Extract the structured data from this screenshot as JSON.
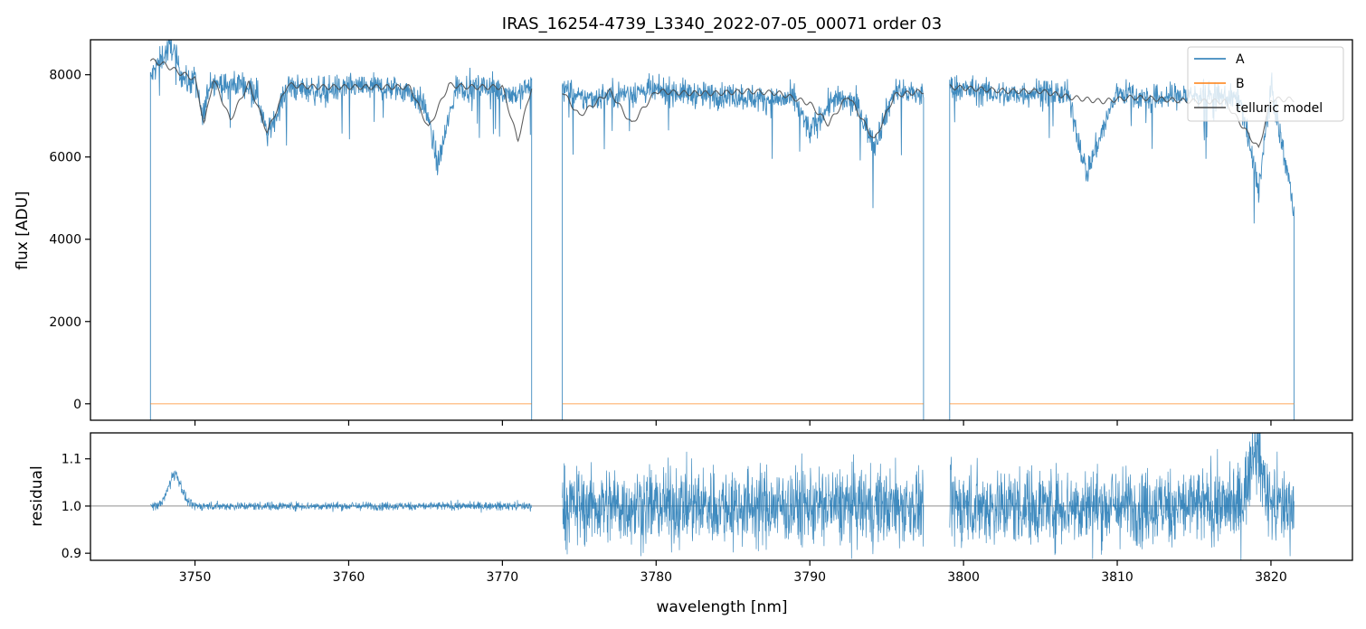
{
  "chart_data": [
    {
      "type": "line",
      "title": "IRAS_16254-4739_L3340_2022-07-05_00071  order 03",
      "xlabel": "",
      "ylabel": "flux [ADU]",
      "xlim": [
        3743.2,
        3825.3
      ],
      "ylim": [
        -400,
        8850
      ],
      "yticks": [
        0,
        2000,
        4000,
        6000,
        8000
      ],
      "xticks": [
        3750,
        3760,
        3770,
        3780,
        3790,
        3800,
        3810,
        3820
      ],
      "xtick_labels_shown": false,
      "grid": false,
      "legend": {
        "placement": "top-right",
        "entries": [
          "A",
          "B",
          "telluric model"
        ]
      },
      "segments": [
        [
          3747.1,
          3771.9
        ],
        [
          3773.9,
          3797.4
        ],
        [
          3799.1,
          3821.5
        ]
      ],
      "series": [
        {
          "name": "A",
          "color": "#1f77b4",
          "description_points": {
            "x": [
              3747.1,
              3747.5,
              3748.0,
              3748.5,
              3749.0,
              3749.5,
              3750.0,
              3750.5,
              3751.0,
              3752.0,
              3753.0,
              3754.0,
              3754.7,
              3756.0,
              3758.0,
              3760.0,
              3762.0,
              3764.0,
              3765.0,
              3765.8,
              3767.0,
              3769.0,
              3771.0,
              3771.9,
              3773.9,
              3775.0,
              3777.0,
              3779.0,
              3781.0,
              3783.0,
              3785.0,
              3787.0,
              3789.0,
              3790.0,
              3791.5,
              3793.0,
              3794.2,
              3795.5,
              3797.4,
              3799.1,
              3801.0,
              3803.0,
              3805.0,
              3806.8,
              3808.0,
              3810.0,
              3812.0,
              3814.0,
              3816.0,
              3818.0,
              3819.2,
              3820.0,
              3821.5
            ],
            "y": [
              7900,
              8200,
              8500,
              8700,
              8100,
              7800,
              7900,
              6900,
              7900,
              7700,
              7800,
              7600,
              6500,
              7700,
              7600,
              7700,
              7700,
              7600,
              7200,
              5800,
              7700,
              7700,
              7500,
              7800,
              7700,
              7400,
              7500,
              7600,
              7600,
              7500,
              7500,
              7400,
              7400,
              6600,
              7400,
              7300,
              6300,
              7600,
              7500,
              7700,
              7600,
              7500,
              7600,
              7500,
              5600,
              7600,
              7400,
              7500,
              7500,
              7400,
              5200,
              7700,
              4800
            ]
          }
        },
        {
          "name": "B",
          "color": "#ff7f0e",
          "description_points": {
            "x": [
              3747.1,
              3821.5
            ],
            "y": [
              0,
              0
            ]
          }
        },
        {
          "name": "telluric model",
          "color": "#444444",
          "description_points": {
            "x": [
              3747.1,
              3748.0,
              3749.0,
              3750.0,
              3750.6,
              3751.2,
              3752.3,
              3753.5,
              3754.7,
              3756.0,
              3758.0,
              3760.0,
              3762.0,
              3764.0,
              3765.2,
              3766.5,
              3768.0,
              3770.0,
              3771.0,
              3771.9,
              3773.9,
              3775.0,
              3777.0,
              3778.4,
              3780.0,
              3782.0,
              3784.0,
              3786.0,
              3788.0,
              3790.0,
              3791.2,
              3792.5,
              3794.2,
              3795.5,
              3797.4,
              3799.1,
              3801.0,
              3803.0,
              3805.0,
              3807.0,
              3809.0,
              3811.0,
              3813.0,
              3815.0,
              3817.0,
              3819.2,
              3820.0,
              3821.5
            ],
            "y": [
              8350,
              8250,
              8050,
              7900,
              6800,
              7900,
              6900,
              7800,
              6600,
              7750,
              7700,
              7700,
              7700,
              7700,
              6700,
              7750,
              7700,
              7700,
              6400,
              7700,
              7600,
              7000,
              7600,
              6800,
              7600,
              7550,
              7550,
              7600,
              7550,
              7300,
              6800,
              7500,
              6400,
              7500,
              7600,
              7700,
              7650,
              7600,
              7600,
              7450,
              7350,
              7450,
              7400,
              7350,
              7350,
              6200,
              7400,
              7400
            ]
          }
        }
      ]
    },
    {
      "type": "line",
      "title": "",
      "xlabel": "wavelength [nm]",
      "ylabel": "residual",
      "xlim": [
        3743.2,
        3825.3
      ],
      "ylim": [
        0.885,
        1.155
      ],
      "yticks": [
        0.9,
        1.0,
        1.1
      ],
      "ytick_labels": [
        "0.9",
        "1.0",
        "1.1"
      ],
      "xticks": [
        3750,
        3760,
        3770,
        3780,
        3790,
        3800,
        3810,
        3820
      ],
      "xtick_labels": [
        "3750",
        "3760",
        "3770",
        "3780",
        "3790",
        "3800",
        "3810",
        "3820"
      ],
      "reference_line": 1.0,
      "grid": false,
      "series": [
        {
          "name": "residual",
          "color": "#1f77b4",
          "segments": [
            {
              "x": [
                3747.1,
                3771.9
              ],
              "center": 1.0,
              "spread": 0.01,
              "bump": {
                "x": 3748.7,
                "peak": 1.08
              }
            },
            {
              "x": [
                3773.9,
                3797.4
              ],
              "center": 1.0,
              "spread": 0.09
            },
            {
              "x": [
                3799.1,
                3821.5
              ],
              "center": 1.0,
              "spread": 0.09,
              "bump": {
                "x": 3819.0,
                "peak": 1.15
              }
            }
          ]
        }
      ]
    }
  ]
}
